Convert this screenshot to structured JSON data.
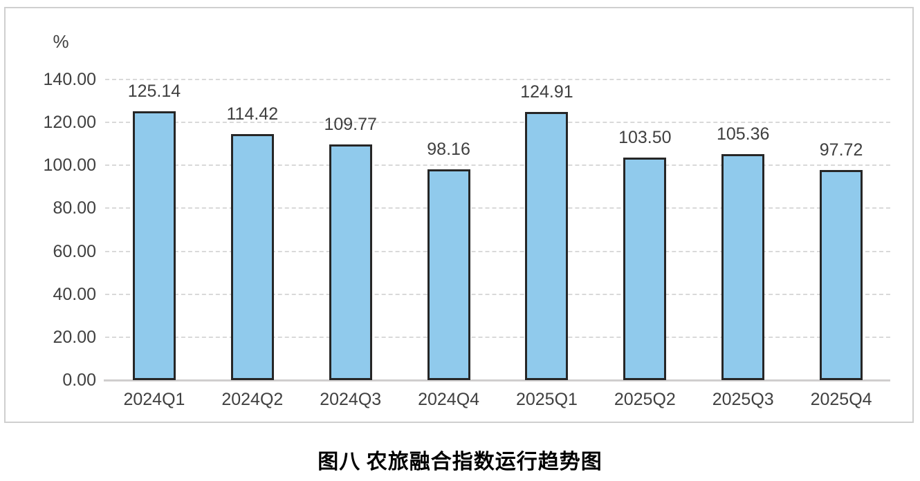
{
  "chart_data": {
    "type": "bar",
    "title": "图八 农旅融合指数运行趋势图",
    "ylabel": "%",
    "categories": [
      "2024Q1",
      "2024Q2",
      "2024Q3",
      "2024Q4",
      "2025Q1",
      "2025Q2",
      "2025Q3",
      "2025Q4"
    ],
    "values": [
      125.14,
      114.42,
      109.77,
      98.16,
      124.91,
      103.5,
      105.36,
      97.72
    ],
    "data_labels": [
      "125.14",
      "114.42",
      "109.77",
      "98.16",
      "124.91",
      "103.50",
      "105.36",
      "97.72"
    ],
    "y_ticks": [
      "140.00",
      "120.00",
      "100.00",
      "80.00",
      "60.00",
      "40.00",
      "20.00",
      "0.00"
    ],
    "y_tick_values": [
      140,
      120,
      100,
      80,
      60,
      40,
      20,
      0
    ],
    "ylim": [
      0,
      140
    ],
    "grid": "horizontal-dashed",
    "legend": "none",
    "colors": {
      "bar_fill": "#90caec",
      "bar_border": "#262626",
      "gridline": "#d9d9d9",
      "axis_line": "#d0cece",
      "text": "#404040",
      "frame_border": "#cfcfcf"
    }
  }
}
